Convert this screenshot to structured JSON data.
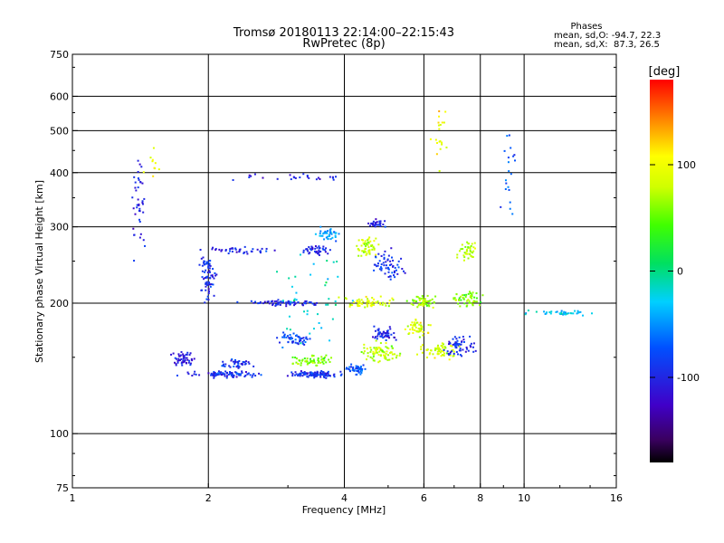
{
  "chart_data": {
    "type": "scatter",
    "title": "Tromsø 20180113 22:14:00–22:15:43",
    "subtitle": "RwPretec (8p)",
    "xlabel": "Frequency [MHz]",
    "ylabel": "Stationary phase Virtual Height [km]",
    "xscale": "log",
    "yscale": "log",
    "xlim": [
      1,
      16
    ],
    "ylim": [
      75,
      750
    ],
    "x_ticks": [
      1,
      2,
      4,
      6,
      8,
      10,
      16
    ],
    "x_tick_labels": [
      "1",
      "2",
      "4",
      "6",
      "8",
      "10",
      "16"
    ],
    "x_grid": [
      2,
      4,
      6,
      8,
      10
    ],
    "y_ticks": [
      75,
      100,
      200,
      300,
      400,
      500,
      600,
      750
    ],
    "y_tick_labels": [
      "75",
      "100",
      "200",
      "300",
      "400",
      "500",
      "600",
      "750"
    ],
    "y_grid": [
      100,
      200,
      300,
      400,
      500,
      600
    ],
    "grid": true,
    "phase_info": {
      "title": "Phases",
      "line1": "mean, sd,O: -94.7, 22.3",
      "line2": "mean, sd,X:  87.3, 26.5"
    },
    "colorbar": {
      "label": "[deg]",
      "range": [
        -180,
        180
      ],
      "ticks": [
        100,
        0,
        -100
      ],
      "tick_labels": [
        "100",
        "0",
        "-100"
      ],
      "colormap": "rainbow"
    },
    "series": [
      {
        "description": "echo clusters (center x [MHz], center y [km], x spread, y spread, count, phase [deg])",
        "clusters": [
          [
            2.2,
            137,
            0.5,
            3,
            90,
            -95
          ],
          [
            3.5,
            137,
            0.6,
            3,
            110,
            -95
          ],
          [
            4.3,
            140,
            0.3,
            5,
            50,
            -70
          ],
          [
            1.75,
            148,
            0.15,
            8,
            50,
            -110
          ],
          [
            2.3,
            145,
            0.25,
            5,
            40,
            -95
          ],
          [
            3.4,
            147,
            0.5,
            6,
            60,
            60
          ],
          [
            4.8,
            155,
            0.6,
            10,
            80,
            75
          ],
          [
            6.5,
            155,
            0.8,
            10,
            60,
            85
          ],
          [
            3.1,
            165,
            0.35,
            8,
            50,
            -80
          ],
          [
            4.9,
            170,
            0.4,
            8,
            50,
            -100
          ],
          [
            5.8,
            175,
            0.5,
            10,
            50,
            90
          ],
          [
            7.2,
            160,
            0.7,
            12,
            60,
            -95
          ],
          [
            3.0,
            200,
            0.8,
            4,
            70,
            -95
          ],
          [
            4.5,
            200,
            0.8,
            8,
            60,
            90
          ],
          [
            6.0,
            200,
            0.6,
            10,
            50,
            70
          ],
          [
            7.5,
            205,
            0.7,
            12,
            50,
            60
          ],
          [
            2.0,
            230,
            0.12,
            35,
            70,
            -95
          ],
          [
            2.3,
            265,
            0.6,
            8,
            40,
            -100
          ],
          [
            3.5,
            265,
            0.4,
            10,
            40,
            -100
          ],
          [
            4.5,
            270,
            0.3,
            20,
            60,
            80
          ],
          [
            5.0,
            245,
            0.6,
            25,
            60,
            -90
          ],
          [
            7.5,
            265,
            0.5,
            20,
            40,
            75
          ],
          [
            3.7,
            290,
            0.3,
            15,
            40,
            -50
          ],
          [
            4.7,
            305,
            0.3,
            8,
            30,
            -100
          ],
          [
            11.8,
            190,
            2.5,
            3,
            40,
            -30
          ],
          [
            1.4,
            330,
            0.06,
            150,
            40,
            -100
          ],
          [
            6.5,
            480,
            0.3,
            100,
            20,
            100
          ],
          [
            9.3,
            400,
            0.5,
            150,
            20,
            -70
          ],
          [
            3.0,
            390,
            1.2,
            10,
            25,
            -100
          ],
          [
            1.5,
            420,
            0.1,
            50,
            10,
            100
          ],
          [
            3.5,
            205,
            1.0,
            60,
            40,
            -20
          ]
        ]
      }
    ]
  }
}
